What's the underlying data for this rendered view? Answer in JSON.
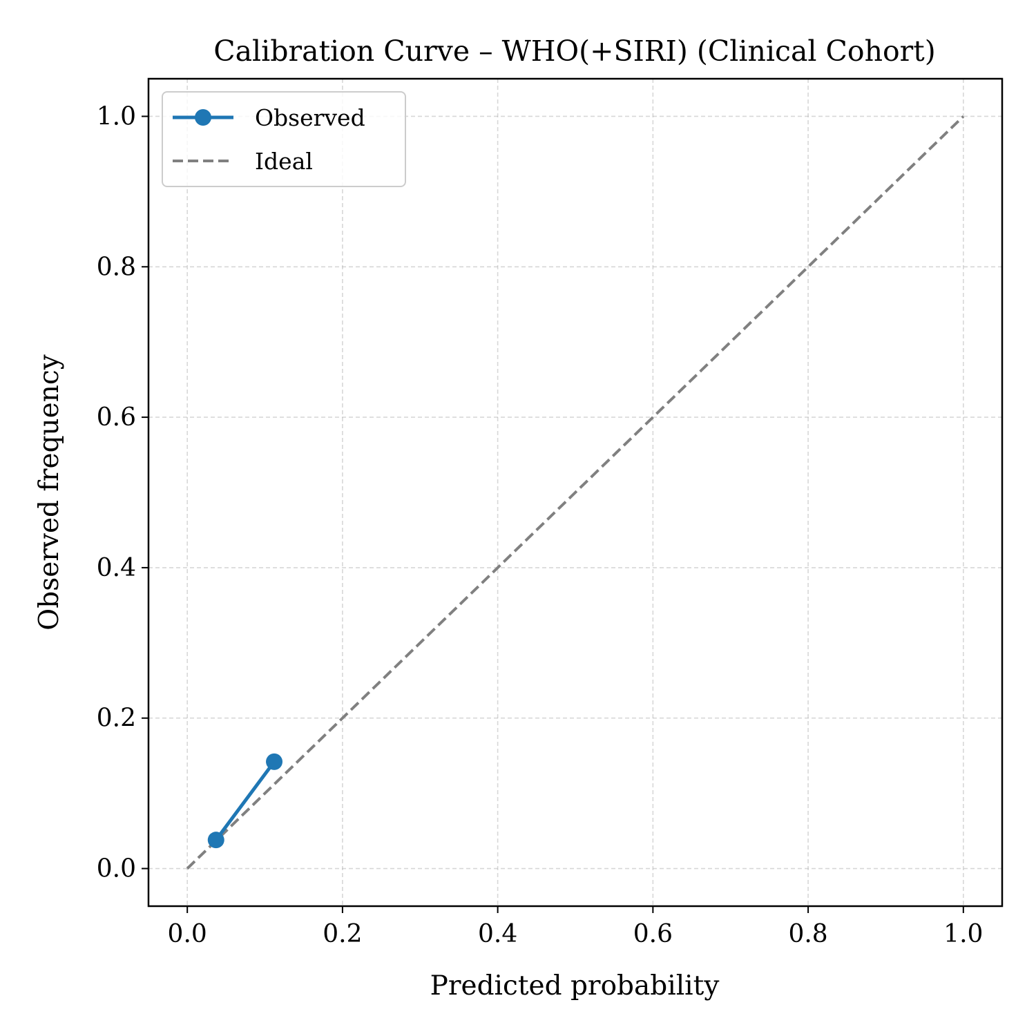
{
  "chart_data": {
    "type": "line",
    "title": "Calibration Curve – WHO(+SIRI) (Clinical Cohort)",
    "xlabel": "Predicted probability",
    "ylabel": "Observed frequency",
    "xlim": [
      -0.05,
      1.05
    ],
    "ylim": [
      -0.05,
      1.05
    ],
    "x_ticks": [
      "0.0",
      "0.2",
      "0.4",
      "0.6",
      "0.8",
      "1.0"
    ],
    "y_ticks": [
      "0.0",
      "0.2",
      "0.4",
      "0.6",
      "0.8",
      "1.0"
    ],
    "grid": true,
    "legend_position": "top-left",
    "series": [
      {
        "name": "Observed",
        "style": "solid-markers",
        "color": "#1f77b4",
        "x": [
          0.037,
          0.112
        ],
        "y": [
          0.038,
          0.142
        ]
      },
      {
        "name": "Ideal",
        "style": "dashed",
        "color": "#808080",
        "x": [
          0.0,
          1.0
        ],
        "y": [
          0.0,
          1.0
        ]
      }
    ]
  }
}
